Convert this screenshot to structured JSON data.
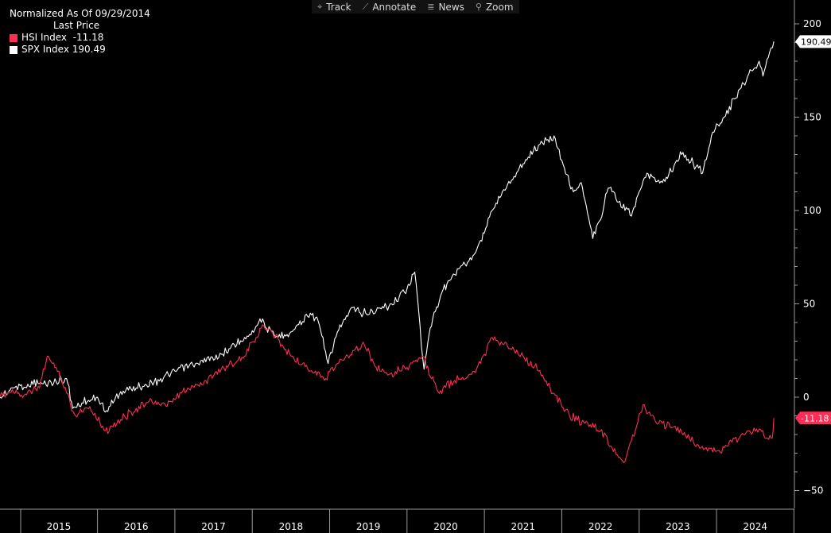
{
  "toolbar": {
    "items": [
      {
        "label": "Track",
        "icon": "crosshair-icon",
        "glyph": "⌖"
      },
      {
        "label": "Annotate",
        "icon": "pencil-icon",
        "glyph": "⟋"
      },
      {
        "label": "News",
        "icon": "news-icon",
        "glyph": "≣"
      },
      {
        "label": "Zoom",
        "icon": "magnifier-icon",
        "glyph": "⚲"
      }
    ]
  },
  "legend": {
    "title": "Normalized As Of 09/29/2014",
    "subtitle": "Last Price",
    "entries": [
      {
        "name": "HSI Index",
        "value": "-11.18",
        "color": "#ff2d55"
      },
      {
        "name": "SPX Index",
        "value": "190.49",
        "color": "#ffffff"
      }
    ]
  },
  "chart_data": {
    "type": "line",
    "title": "Normalized As Of 09/29/2014",
    "ylim": [
      -55,
      210
    ],
    "xlim": [
      2014.74,
      2024.76
    ],
    "yticks": [
      -50,
      0,
      50,
      100,
      150,
      200
    ],
    "xlabels": [
      "2015",
      "2016",
      "2017",
      "2018",
      "2019",
      "2020",
      "2021",
      "2022",
      "2023",
      "2024"
    ],
    "grid": false,
    "legend_position": "top-left",
    "series": [
      {
        "name": "SPX Index",
        "color": "#ffffff",
        "last_value": "190.49",
        "x": [
          2014.74,
          2014.9,
          2015.1,
          2015.4,
          2015.6,
          2015.68,
          2015.8,
          2016.0,
          2016.1,
          2016.3,
          2016.5,
          2016.7,
          2016.85,
          2017.0,
          2017.3,
          2017.6,
          2017.9,
          2018.05,
          2018.1,
          2018.3,
          2018.5,
          2018.75,
          2018.85,
          2018.98,
          2019.1,
          2019.3,
          2019.4,
          2019.6,
          2019.8,
          2020.0,
          2020.1,
          2020.22,
          2020.3,
          2020.45,
          2020.6,
          2020.8,
          2020.95,
          2021.1,
          2021.3,
          2021.5,
          2021.7,
          2021.82,
          2021.9,
          2022.0,
          2022.15,
          2022.25,
          2022.4,
          2022.5,
          2022.6,
          2022.75,
          2022.9,
          2023.0,
          2023.1,
          2023.3,
          2023.55,
          2023.7,
          2023.82,
          2023.95,
          2024.1,
          2024.3,
          2024.45,
          2024.55,
          2024.6,
          2024.67,
          2024.74
        ],
        "y": [
          0,
          5,
          7,
          8,
          10,
          -6,
          -3,
          0,
          -8,
          3,
          5,
          8,
          10,
          14,
          18,
          23,
          32,
          38,
          42,
          32,
          35,
          45,
          41,
          18,
          35,
          48,
          45,
          46,
          50,
          58,
          67,
          15,
          37,
          56,
          66,
          73,
          84,
          100,
          114,
          125,
          135,
          138,
          140,
          127,
          110,
          115,
          85,
          95,
          112,
          105,
          97,
          110,
          120,
          115,
          130,
          125,
          120,
          142,
          150,
          165,
          175,
          180,
          172,
          182,
          190.49
        ]
      },
      {
        "name": "HSI Index",
        "color": "#ff2d55",
        "last_value": "-11.18",
        "x": [
          2014.74,
          2014.9,
          2015.05,
          2015.25,
          2015.35,
          2015.5,
          2015.7,
          2015.9,
          2016.1,
          2016.3,
          2016.5,
          2016.75,
          2016.9,
          2017.1,
          2017.4,
          2017.6,
          2017.9,
          2018.05,
          2018.15,
          2018.3,
          2018.5,
          2018.8,
          2018.95,
          2019.1,
          2019.3,
          2019.45,
          2019.6,
          2019.8,
          2020.0,
          2020.2,
          2020.4,
          2020.6,
          2020.8,
          2020.95,
          2021.1,
          2021.3,
          2021.5,
          2021.7,
          2021.85,
          2022.0,
          2022.1,
          2022.3,
          2022.5,
          2022.65,
          2022.8,
          2022.95,
          2023.05,
          2023.2,
          2023.4,
          2023.55,
          2023.7,
          2023.8,
          2024.0,
          2024.1,
          2024.2,
          2024.35,
          2024.55,
          2024.66,
          2024.72,
          2024.74
        ],
        "y": [
          0,
          4,
          1,
          5,
          22,
          14,
          -9,
          -5,
          -18,
          -12,
          -6,
          -2,
          -5,
          3,
          9,
          15,
          22,
          32,
          38,
          33,
          22,
          13,
          10,
          18,
          25,
          28,
          16,
          13,
          16,
          22,
          3,
          8,
          12,
          18,
          32,
          27,
          22,
          14,
          5,
          -5,
          -10,
          -14,
          -18,
          -27,
          -35,
          -18,
          -4,
          -12,
          -16,
          -19,
          -24,
          -27,
          -29,
          -27,
          -24,
          -20,
          -17,
          -22,
          -22,
          -11.18
        ]
      }
    ]
  }
}
